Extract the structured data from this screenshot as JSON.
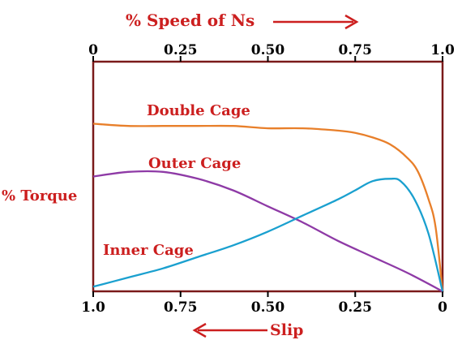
{
  "chart_data": {
    "type": "line",
    "title": "% Speed of Ns",
    "xlabel": "Slip",
    "ylabel": "% Torque",
    "top_axis": {
      "ticks": [
        0,
        0.25,
        0.5,
        0.75,
        1.0
      ],
      "tick_labels": [
        "0",
        "0.25",
        "0.50",
        "0.75",
        "1.0"
      ]
    },
    "bottom_axis": {
      "ticks": [
        1.0,
        0.75,
        0.5,
        0.25,
        0
      ],
      "tick_labels": [
        "1.0",
        "0.75",
        "0.50",
        "0.25",
        "0"
      ]
    },
    "xlim": [
      0,
      1
    ],
    "ylim": [
      0,
      1
    ],
    "grid": false,
    "series": [
      {
        "name": "Double Cage",
        "color": "#e87f2a",
        "x": [
          0,
          0.1,
          0.2,
          0.3,
          0.4,
          0.5,
          0.6,
          0.7,
          0.75,
          0.8,
          0.85,
          0.9,
          0.93,
          0.96,
          0.98,
          1.0
        ],
        "y": [
          0.73,
          0.72,
          0.72,
          0.72,
          0.72,
          0.71,
          0.71,
          0.7,
          0.69,
          0.67,
          0.64,
          0.58,
          0.52,
          0.4,
          0.28,
          0.0
        ]
      },
      {
        "name": "Outer Cage",
        "color": "#8e3aa6",
        "x": [
          0,
          0.1,
          0.2,
          0.3,
          0.4,
          0.5,
          0.6,
          0.7,
          0.8,
          0.9,
          1.0
        ],
        "y": [
          0.5,
          0.52,
          0.52,
          0.49,
          0.44,
          0.37,
          0.3,
          0.22,
          0.15,
          0.08,
          0.0
        ]
      },
      {
        "name": "Inner Cage",
        "color": "#1aa0cf",
        "x": [
          0,
          0.1,
          0.2,
          0.3,
          0.4,
          0.5,
          0.6,
          0.7,
          0.75,
          0.8,
          0.85,
          0.88,
          0.92,
          0.96,
          1.0
        ],
        "y": [
          0.02,
          0.06,
          0.1,
          0.15,
          0.2,
          0.26,
          0.33,
          0.4,
          0.44,
          0.48,
          0.49,
          0.48,
          0.4,
          0.25,
          0.0
        ]
      }
    ]
  },
  "colors": {
    "title": "#cc1f1f",
    "frame": "#7a1a1a",
    "arrow": "#cc1f1f"
  }
}
